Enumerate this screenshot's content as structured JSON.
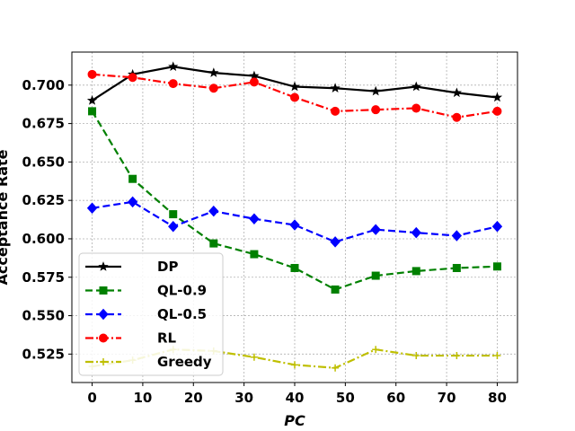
{
  "chart_data": {
    "type": "line",
    "title": "",
    "xlabel": "PC",
    "ylabel": "Acceptance Rate",
    "xlim": [
      -4,
      84
    ],
    "ylim": [
      0.5065,
      0.7215
    ],
    "xticks": [
      0,
      10,
      20,
      30,
      40,
      50,
      60,
      70,
      80
    ],
    "yticks": [
      0.525,
      0.55,
      0.575,
      0.6,
      0.625,
      0.65,
      0.675,
      0.7
    ],
    "xtick_labels": [
      "0",
      "10",
      "20",
      "30",
      "40",
      "50",
      "60",
      "70",
      "80"
    ],
    "ytick_labels": [
      "0.525",
      "0.550",
      "0.575",
      "0.600",
      "0.625",
      "0.650",
      "0.675",
      "0.700"
    ],
    "grid": true,
    "legend_position": "lower-left",
    "x": [
      0,
      8,
      16,
      24,
      32,
      40,
      48,
      56,
      64,
      72,
      80
    ],
    "series": [
      {
        "name": "DP",
        "color": "#000000",
        "marker": "star",
        "dash": "solid",
        "values": [
          0.69,
          0.707,
          0.712,
          0.708,
          0.706,
          0.699,
          0.698,
          0.696,
          0.699,
          0.695,
          0.692
        ]
      },
      {
        "name": "QL-0.9",
        "color": "#008000",
        "marker": "square",
        "dash": "dashed",
        "values": [
          0.683,
          0.639,
          0.616,
          0.597,
          0.59,
          0.581,
          0.567,
          0.576,
          0.579,
          0.581,
          0.582
        ]
      },
      {
        "name": "QL-0.5",
        "color": "#0000ff",
        "marker": "diamond",
        "dash": "dashed",
        "values": [
          0.62,
          0.624,
          0.608,
          0.618,
          0.613,
          0.609,
          0.598,
          0.606,
          0.604,
          0.602,
          0.608
        ]
      },
      {
        "name": "RL",
        "color": "#ff0000",
        "marker": "circle",
        "dash": "dashdot",
        "values": [
          0.707,
          0.705,
          0.701,
          0.698,
          0.702,
          0.692,
          0.683,
          0.684,
          0.685,
          0.679,
          0.683
        ]
      },
      {
        "name": "Greedy",
        "color": "#bfbf00",
        "marker": "plus",
        "dash": "dashdot",
        "values": [
          0.517,
          0.521,
          0.528,
          0.527,
          0.523,
          0.518,
          0.516,
          0.528,
          0.524,
          0.524,
          0.524
        ]
      }
    ]
  }
}
